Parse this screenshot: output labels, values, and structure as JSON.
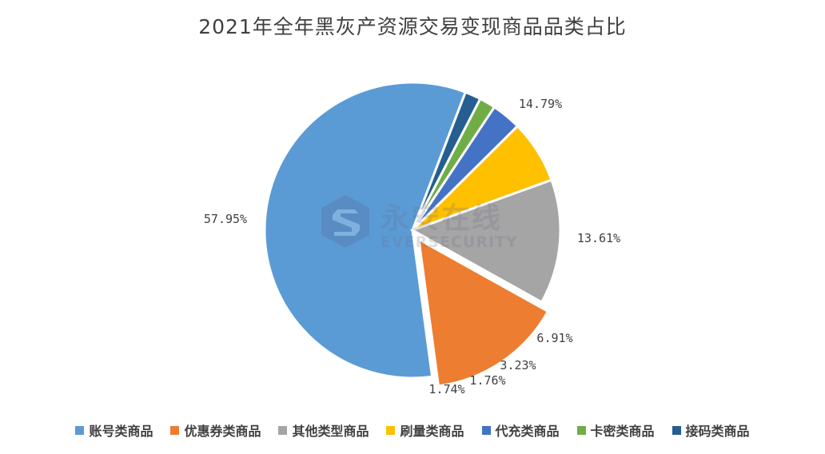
{
  "chart_data": {
    "type": "pie",
    "title": "2021年全年黑灰产资源交易变现商品品类占比",
    "categories": [
      "账号类商品",
      "优惠券类商品",
      "其他类型商品",
      "刷量类商品",
      "代充类商品",
      "卡密类商品",
      "接码类商品"
    ],
    "values": [
      57.95,
      14.79,
      13.61,
      6.91,
      3.23,
      1.76,
      1.74
    ],
    "data_labels": [
      "57.95%",
      "14.79%",
      "13.61%",
      "6.91%",
      "3.23%",
      "1.76%",
      "1.74%"
    ],
    "colors": [
      "#5b9bd5",
      "#ed7d31",
      "#a5a5a5",
      "#ffc000",
      "#4472c4",
      "#70ad47",
      "#255e91"
    ],
    "exploded_slice": "优惠券类商品",
    "legend_position": "bottom"
  },
  "watermark": {
    "logo_cn": "永安在线",
    "logo_en": "EVERSECURITY",
    "icon": "shield-s-logo-icon"
  }
}
